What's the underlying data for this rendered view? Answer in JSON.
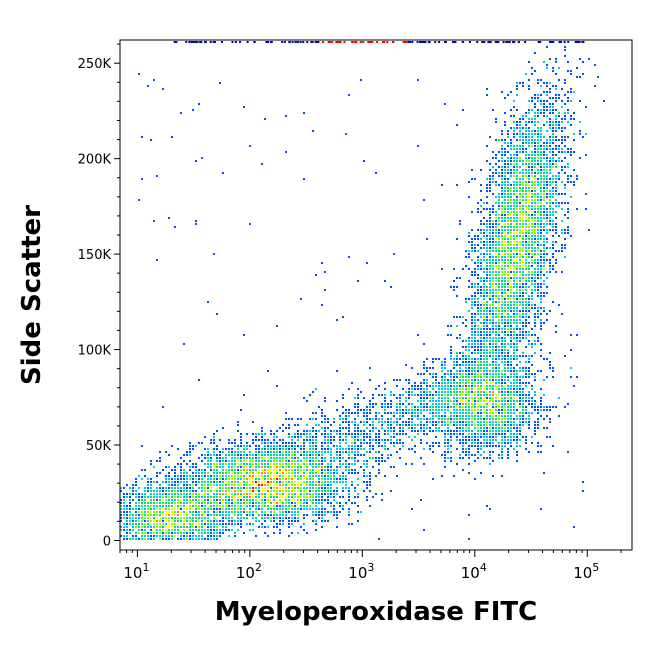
{
  "chart_data": {
    "type": "scatter",
    "subtype": "flow-cytometry-density-dot-plot",
    "xlabel": "Myeloperoxidase FITC",
    "ylabel": "Side Scatter",
    "x_scale": "log",
    "xlim": [
      7,
      250000
    ],
    "ylim": [
      -5000,
      262144
    ],
    "x_ticks": [
      {
        "value": 10,
        "base": "10",
        "exp": "1"
      },
      {
        "value": 100,
        "base": "10",
        "exp": "2"
      },
      {
        "value": 1000,
        "base": "10",
        "exp": "3"
      },
      {
        "value": 10000,
        "base": "10",
        "exp": "4"
      },
      {
        "value": 100000,
        "base": "10",
        "exp": "5"
      }
    ],
    "y_ticks": [
      {
        "value": 0,
        "label": "0"
      },
      {
        "value": 50000,
        "label": "50K"
      },
      {
        "value": 100000,
        "label": "100K"
      },
      {
        "value": 150000,
        "label": "150K"
      },
      {
        "value": 200000,
        "label": "200K"
      },
      {
        "value": 250000,
        "label": "250K"
      }
    ],
    "grid": false,
    "legend": "none",
    "colormap": [
      "#0000cc",
      "#0050ff",
      "#00c8ff",
      "#00e08a",
      "#80ff00",
      "#ffff00",
      "#ff8c00",
      "#ff0000"
    ],
    "populations": [
      {
        "x_center": 140,
        "y_center": 30000,
        "x_spread_decades": 0.35,
        "y_spread": 10000,
        "peak_x": 150,
        "peak_y": 31000
      },
      {
        "x_center": 20,
        "y_center": 12000,
        "x_spread_decades": 0.25,
        "y_spread": 9000
      },
      {
        "x_center": 23000,
        "y_center": 155000,
        "x_spread_decades": 0.17,
        "y_spread": 38000,
        "peak_x": 22000,
        "peak_y": 155000
      },
      {
        "x_center": 12000,
        "y_center": 70000,
        "x_spread_decades": 0.25,
        "y_spread": 12000
      }
    ],
    "bridge": {
      "from": {
        "x": 200,
        "y": 38000
      },
      "to": {
        "x": 15000,
        "y": 85000
      }
    }
  }
}
